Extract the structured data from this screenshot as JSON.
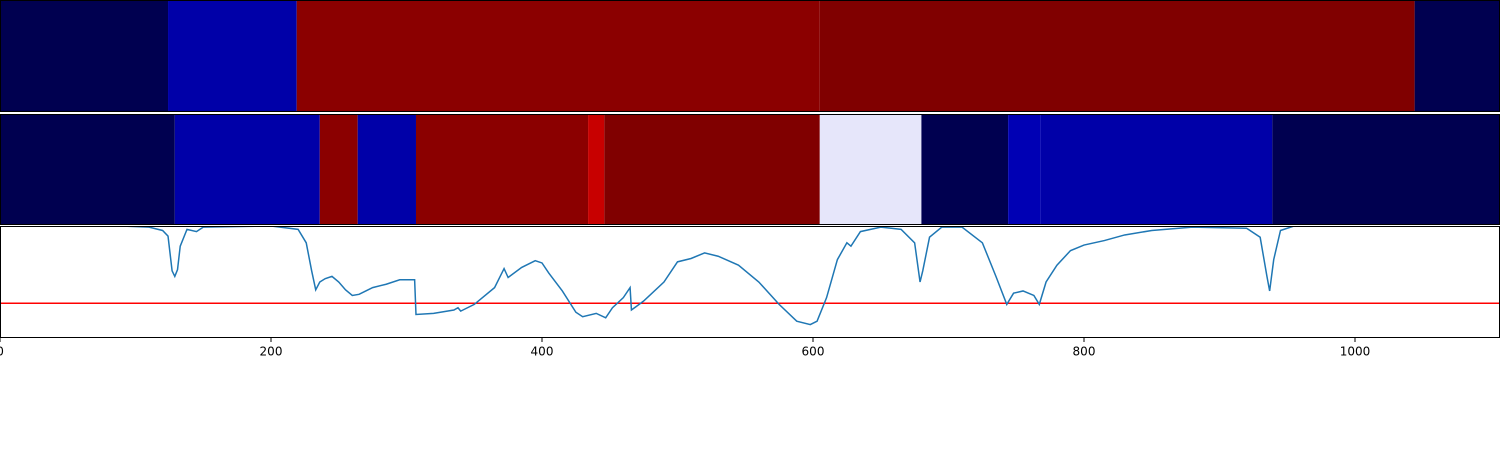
{
  "chart_data": [
    {
      "type": "segments",
      "xlim": [
        0,
        1107
      ],
      "segments": [
        {
          "start": 0,
          "end": 124,
          "color": "#000050"
        },
        {
          "start": 124,
          "end": 219,
          "color": "#0000a8"
        },
        {
          "start": 219,
          "end": 605,
          "color": "#8b0000"
        },
        {
          "start": 605,
          "end": 1044,
          "color": "#800000"
        },
        {
          "start": 1044,
          "end": 1107,
          "color": "#000050"
        }
      ]
    },
    {
      "type": "segments",
      "xlim": [
        0,
        1107
      ],
      "segments": [
        {
          "start": 0,
          "end": 129,
          "color": "#000050"
        },
        {
          "start": 129,
          "end": 236,
          "color": "#0000a8"
        },
        {
          "start": 236,
          "end": 264,
          "color": "#8b0000"
        },
        {
          "start": 264,
          "end": 307,
          "color": "#0000a8"
        },
        {
          "start": 307,
          "end": 434,
          "color": "#8b0000"
        },
        {
          "start": 434,
          "end": 446,
          "color": "#c80000"
        },
        {
          "start": 446,
          "end": 605,
          "color": "#800000"
        },
        {
          "start": 605,
          "end": 680,
          "color": "#e6e6fa"
        },
        {
          "start": 680,
          "end": 744,
          "color": "#000050"
        },
        {
          "start": 744,
          "end": 768,
          "color": "#0000b4"
        },
        {
          "start": 768,
          "end": 939,
          "color": "#0000a8"
        },
        {
          "start": 939,
          "end": 1107,
          "color": "#000050"
        }
      ]
    },
    {
      "type": "line",
      "xlim": [
        0,
        1107
      ],
      "ylim": [
        0,
        1
      ],
      "xticks": [
        0,
        200,
        400,
        600,
        800,
        1000
      ],
      "color": "#1f77b4",
      "threshold": {
        "value": 0.31,
        "color": "#ff0000"
      },
      "x": [
        0,
        90,
        110,
        120,
        124,
        127,
        129,
        131,
        133,
        138,
        145,
        150,
        200,
        220,
        226,
        230,
        233,
        236,
        240,
        245,
        250,
        255,
        260,
        265,
        270,
        275,
        285,
        295,
        306,
        307,
        320,
        335,
        338,
        340,
        350,
        365,
        372,
        375,
        385,
        395,
        400,
        405,
        415,
        425,
        430,
        440,
        447,
        452,
        460,
        465,
        466,
        475,
        490,
        500,
        510,
        520,
        530,
        545,
        560,
        575,
        588,
        598,
        603,
        610,
        618,
        625,
        628,
        635,
        650,
        665,
        675,
        679,
        681,
        686,
        695,
        710,
        725,
        735,
        743,
        748,
        755,
        763,
        767,
        772,
        780,
        790,
        800,
        815,
        830,
        850,
        880,
        920,
        930,
        935,
        937,
        940,
        945,
        955,
        1107
      ],
      "values": [
        1,
        1,
        0.99,
        0.96,
        0.91,
        0.6,
        0.55,
        0.61,
        0.82,
        0.97,
        0.95,
        0.99,
        1,
        0.97,
        0.85,
        0.6,
        0.43,
        0.5,
        0.53,
        0.55,
        0.5,
        0.43,
        0.38,
        0.39,
        0.42,
        0.45,
        0.48,
        0.52,
        0.52,
        0.21,
        0.22,
        0.25,
        0.27,
        0.24,
        0.3,
        0.45,
        0.62,
        0.54,
        0.63,
        0.69,
        0.67,
        0.58,
        0.42,
        0.23,
        0.19,
        0.22,
        0.18,
        0.27,
        0.36,
        0.45,
        0.25,
        0.33,
        0.5,
        0.68,
        0.71,
        0.76,
        0.73,
        0.65,
        0.5,
        0.3,
        0.15,
        0.12,
        0.15,
        0.36,
        0.7,
        0.85,
        0.82,
        0.95,
        0.99,
        0.97,
        0.85,
        0.5,
        0.6,
        0.9,
        0.99,
        0.99,
        0.85,
        0.55,
        0.3,
        0.4,
        0.42,
        0.38,
        0.3,
        0.5,
        0.65,
        0.78,
        0.83,
        0.87,
        0.92,
        0.96,
        0.99,
        0.98,
        0.9,
        0.55,
        0.42,
        0.7,
        0.96,
        1,
        1
      ]
    }
  ]
}
